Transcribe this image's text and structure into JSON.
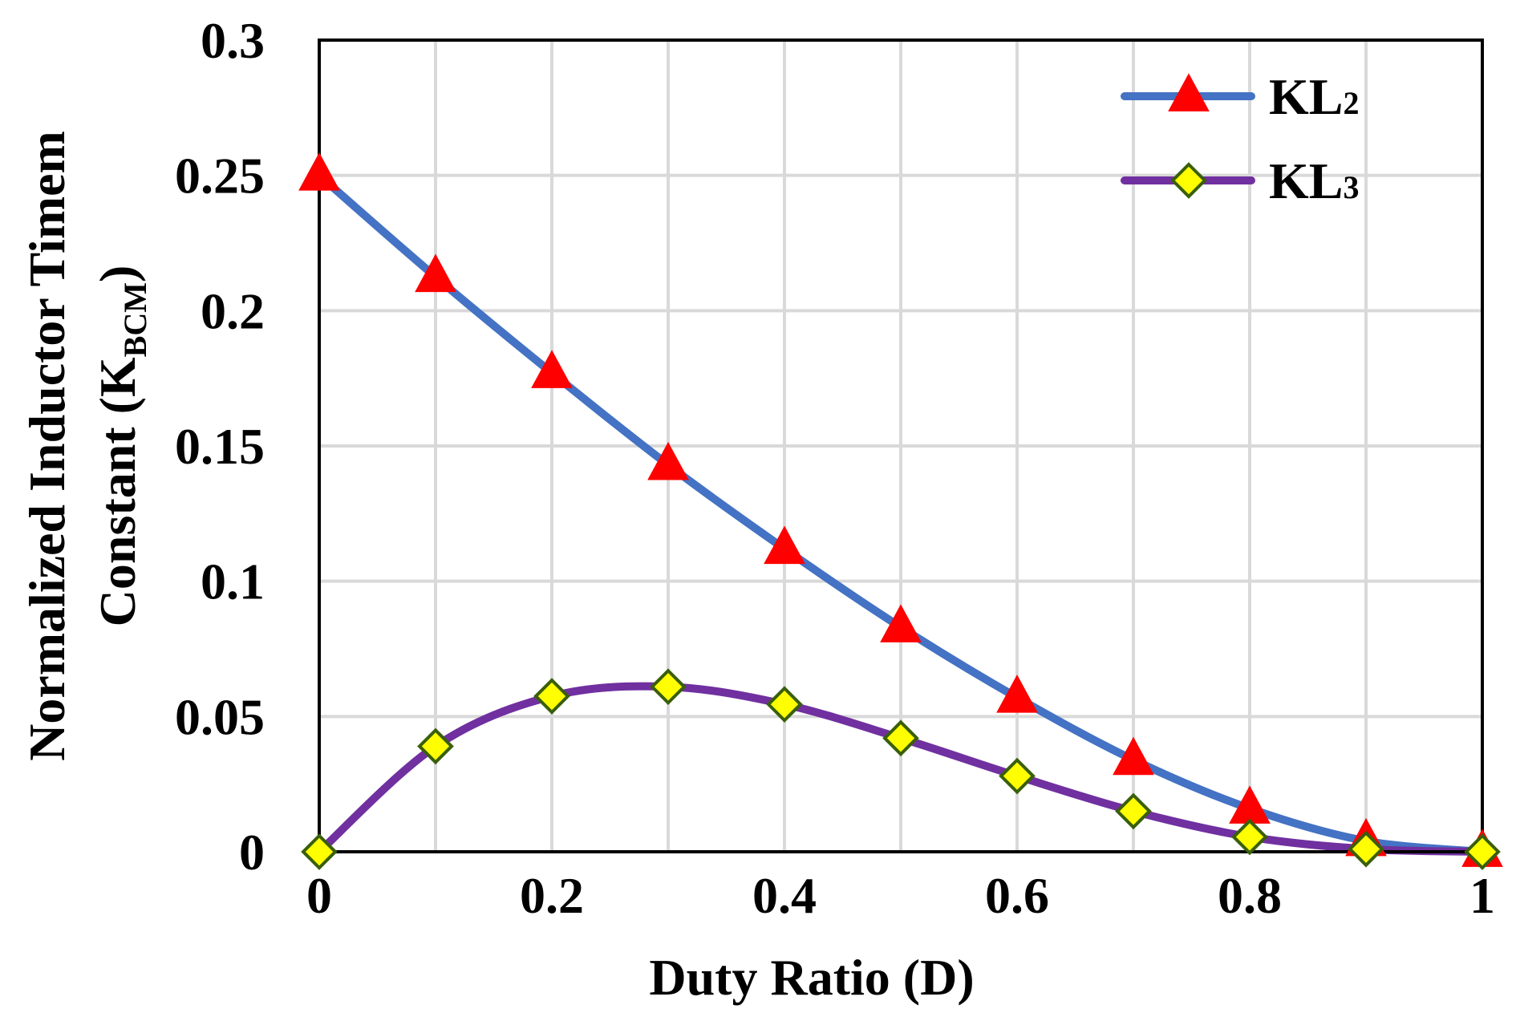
{
  "chart_data": {
    "type": "line",
    "xlabel": "Duty Ratio (D)",
    "ylabel": {
      "line1": "Normalized Inductor Timem",
      "line2_prefix": "Constant (K",
      "line2_sub": "BCM",
      "line2_suffix": ")"
    },
    "xlim": [
      0,
      1
    ],
    "ylim": [
      0,
      0.3
    ],
    "x_ticks": [
      0,
      0.2,
      0.4,
      0.6,
      0.8,
      1
    ],
    "x_tick_labels": [
      "0",
      "0.2",
      "0.4",
      "0.6",
      "0.8",
      "1"
    ],
    "y_ticks": [
      0,
      0.05,
      0.1,
      0.15,
      0.2,
      0.25,
      0.3
    ],
    "y_tick_labels": [
      "0",
      "0.05",
      "0.1",
      "0.15",
      "0.2",
      "0.25",
      "0.3"
    ],
    "x_grid_lines": [
      0.1,
      0.2,
      0.3,
      0.4,
      0.5,
      0.6,
      0.7,
      0.8,
      0.9
    ],
    "grid": true,
    "legend_position": "top-right",
    "x": [
      0,
      0.1,
      0.2,
      0.3,
      0.4,
      0.5,
      0.6,
      0.7,
      0.8,
      0.9,
      1
    ],
    "series": [
      {
        "name": "KL",
        "name_sub": "2",
        "color": "#4472C4",
        "marker": "triangle",
        "marker_color": "#FF0000",
        "values": [
          0.25,
          0.2125,
          0.177,
          0.143,
          0.112,
          0.083,
          0.057,
          0.034,
          0.016,
          0.004,
          0
        ]
      },
      {
        "name": "KL",
        "name_sub": "3",
        "color": "#7030A0",
        "marker": "diamond",
        "marker_color": "#FFFF00",
        "marker_edge": "#3A5F0B",
        "values": [
          0,
          0.039,
          0.0575,
          0.061,
          0.0545,
          0.042,
          0.028,
          0.015,
          0.0055,
          0.001,
          0
        ]
      }
    ]
  }
}
